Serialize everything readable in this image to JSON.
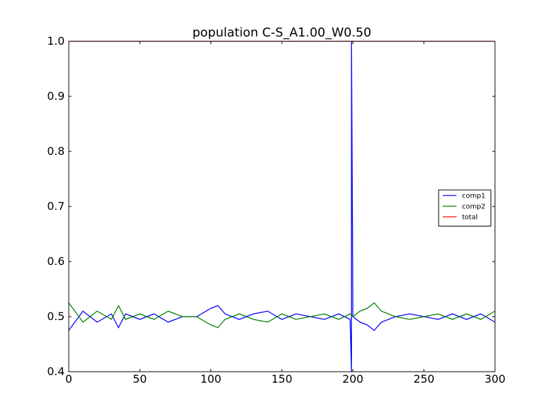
{
  "chart_data": {
    "type": "line",
    "title": "population  C-S_A1.00_W0.50",
    "xlabel": "",
    "ylabel": "",
    "xlim": [
      0,
      300
    ],
    "ylim": [
      0.4,
      1.0
    ],
    "xticks": [
      "0",
      "50",
      "100",
      "150",
      "200",
      "250",
      "300"
    ],
    "yticks": [
      "0.4",
      "0.5",
      "0.6",
      "0.7",
      "0.8",
      "0.9",
      "1.0"
    ],
    "grid": false,
    "legend_position": "center-right",
    "series": [
      {
        "name": "comp1",
        "color": "#0000ff",
        "x": [
          0,
          10,
          20,
          30,
          35,
          40,
          50,
          60,
          70,
          80,
          90,
          100,
          105,
          110,
          120,
          130,
          140,
          150,
          160,
          170,
          180,
          190,
          198,
          199,
          199,
          200,
          205,
          210,
          215,
          220,
          230,
          240,
          250,
          260,
          270,
          280,
          290,
          300
        ],
        "y": [
          0.475,
          0.51,
          0.49,
          0.505,
          0.48,
          0.505,
          0.495,
          0.505,
          0.49,
          0.5,
          0.5,
          0.515,
          0.52,
          0.505,
          0.495,
          0.505,
          0.51,
          0.495,
          0.505,
          0.5,
          0.495,
          0.505,
          0.495,
          0.4,
          1.0,
          0.5,
          0.49,
          0.485,
          0.475,
          0.49,
          0.5,
          0.505,
          0.5,
          0.495,
          0.505,
          0.495,
          0.505,
          0.49
        ]
      },
      {
        "name": "comp2",
        "color": "#008000",
        "x": [
          0,
          10,
          20,
          30,
          35,
          40,
          50,
          60,
          70,
          80,
          90,
          100,
          105,
          110,
          120,
          130,
          140,
          150,
          160,
          170,
          180,
          190,
          198,
          200,
          205,
          210,
          215,
          220,
          230,
          240,
          250,
          260,
          270,
          280,
          290,
          300
        ],
        "y": [
          0.525,
          0.49,
          0.51,
          0.495,
          0.52,
          0.495,
          0.505,
          0.495,
          0.51,
          0.5,
          0.5,
          0.485,
          0.48,
          0.495,
          0.505,
          0.495,
          0.49,
          0.505,
          0.495,
          0.5,
          0.505,
          0.495,
          0.505,
          0.5,
          0.51,
          0.515,
          0.525,
          0.51,
          0.5,
          0.495,
          0.5,
          0.505,
          0.495,
          0.505,
          0.495,
          0.51
        ]
      },
      {
        "name": "total",
        "color": "#ff0000",
        "x": [
          0,
          300
        ],
        "y": [
          1.0,
          1.0
        ]
      }
    ]
  }
}
